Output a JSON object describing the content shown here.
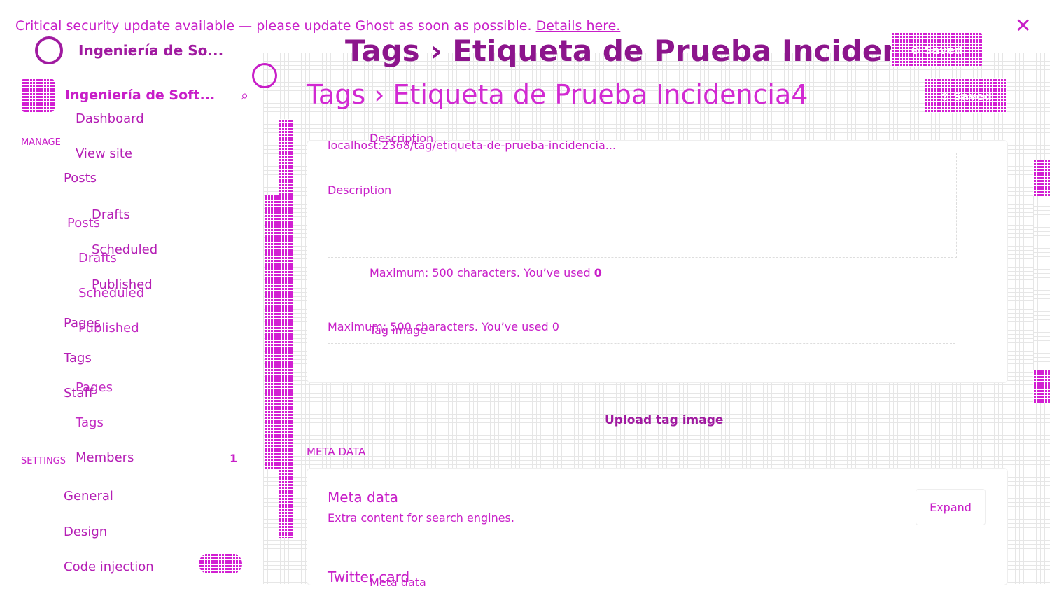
{
  "banner": {
    "text": "Critical security update available — please update Ghost as soon as possible.",
    "link": "Details here."
  },
  "back_layer": {
    "site_name": "Ingeniería de So...",
    "breadcrumb_root": "Tags",
    "breadcrumb_current": "Etiqueta de Prueba Incidencia",
    "save_button": "Saved",
    "nav": [
      "Posts",
      "Drafts",
      "Scheduled",
      "Published",
      "Pages",
      "Tags"
    ],
    "url": "localhost:2368/tag/etiqueta-de-prueba-incidencia...",
    "description_label": "Description",
    "max_text": "Maximum: 500 characters. You’ve used",
    "max_count": "0",
    "tag_image_label": "Tag image",
    "meta_label": "Meta data",
    "twitter_label": "Twitter card"
  },
  "front_layer": {
    "site_name": "Ingeniería de Soft...",
    "breadcrumb_root": "Tags",
    "breadcrumb_current": "Etiqueta de Prueba Incidencia4",
    "save_button": "Saved",
    "nav": {
      "dashboard": "Dashboard",
      "view_site": "View site",
      "manage_heading": "MANAGE",
      "posts": "Posts",
      "drafts": "Drafts",
      "scheduled": "Scheduled",
      "published": "Published",
      "pages": "Pages",
      "tags": "Tags",
      "staff": "Staff",
      "members": "Members",
      "members_count": "1",
      "settings_heading": "SETTINGS",
      "general": "General",
      "design": "Design",
      "code_injection": "Code injection"
    },
    "description_label": "Description",
    "max_text": "Maximum: 500 characters. You’ve used",
    "max_count": "0",
    "upload_button": "Upload tag image",
    "meta_heading": "META DATA",
    "meta_title": "Meta data",
    "meta_subtitle": "Extra content for search engines.",
    "expand_button": "Expand",
    "twitter_title": "Twitter card"
  }
}
